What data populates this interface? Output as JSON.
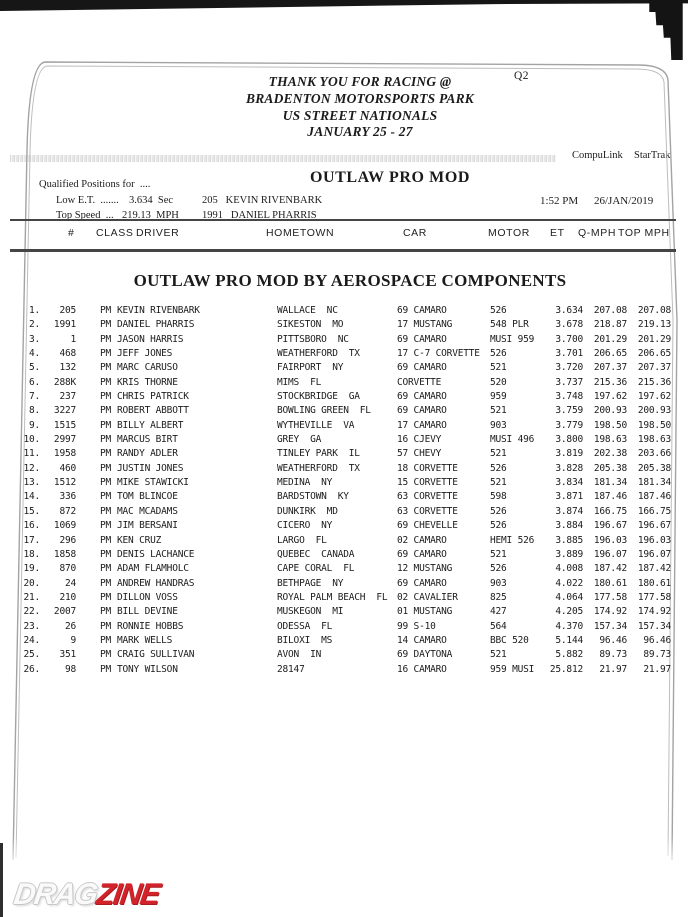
{
  "page": {
    "session_label": "Q2",
    "header_lines": [
      "THANK YOU FOR RACING @",
      "BRADENTON MOTORSPORTS PARK",
      "US STREET NATIONALS",
      "JANUARY 25 - 27"
    ],
    "brand": "CompuLink  StarTrak",
    "qualified_label": "Qualified Positions for  ....",
    "low_et_label": "Low E.T.  .......",
    "low_et_value": "3.634  Sec",
    "low_et_holder": "205   KEVIN RIVENBARK",
    "top_speed_label": "Top Speed  ...",
    "top_speed_value": "219.13  MPH",
    "top_speed_holder": "1991   DANIEL PHARRIS",
    "class_title": "OUTLAW PRO MOD",
    "print_time": "1:52 PM",
    "print_date": "26/JAN/2019",
    "section_title": "OUTLAW PRO MOD BY AEROSPACE COMPONENTS",
    "logo": {
      "part1": "DRAG",
      "part2": "ZINE",
      "accent_color": "#d2232a"
    }
  },
  "table": {
    "headers": [
      "#",
      "CLASS",
      "DRIVER",
      "HOMETOWN",
      "CAR",
      "MOTOR",
      "ET",
      "Q-MPH",
      "TOP MPH"
    ],
    "rows": [
      {
        "pos": "1.",
        "num": "205",
        "cls": "PM",
        "driver": "KEVIN RIVENBARK",
        "hometown": "WALLACE  NC",
        "car": "69 CAMARO",
        "motor": "526",
        "et": "3.634",
        "qmph": "207.08",
        "top": "207.08"
      },
      {
        "pos": "2.",
        "num": "1991",
        "cls": "PM",
        "driver": "DANIEL PHARRIS",
        "hometown": "SIKESTON  MO",
        "car": "17 MUSTANG",
        "motor": "548 PLR",
        "et": "3.678",
        "qmph": "218.87",
        "top": "219.13"
      },
      {
        "pos": "3.",
        "num": "1",
        "cls": "PM",
        "driver": "JASON HARRIS",
        "hometown": "PITTSBORO  NC",
        "car": "69 CAMARO",
        "motor": "MUSI 959",
        "et": "3.700",
        "qmph": "201.29",
        "top": "201.29"
      },
      {
        "pos": "4.",
        "num": "468",
        "cls": "PM",
        "driver": "JEFF JONES",
        "hometown": "WEATHERFORD  TX",
        "car": "17 C-7 CORVETTE",
        "motor": "526",
        "et": "3.701",
        "qmph": "206.65",
        "top": "206.65"
      },
      {
        "pos": "5.",
        "num": "132",
        "cls": "PM",
        "driver": "MARC CARUSO",
        "hometown": "FAIRPORT  NY",
        "car": "69 CAMARO",
        "motor": "521",
        "et": "3.720",
        "qmph": "207.37",
        "top": "207.37"
      },
      {
        "pos": "6.",
        "num": "288K",
        "cls": "PM",
        "driver": "KRIS THORNE",
        "hometown": "MIMS  FL",
        "car": "CORVETTE",
        "motor": "520",
        "et": "3.737",
        "qmph": "215.36",
        "top": "215.36"
      },
      {
        "pos": "7.",
        "num": "237",
        "cls": "PM",
        "driver": "CHRIS PATRICK",
        "hometown": "STOCKBRIDGE  GA",
        "car": "69 CAMARO",
        "motor": "959",
        "et": "3.748",
        "qmph": "197.62",
        "top": "197.62"
      },
      {
        "pos": "8.",
        "num": "3227",
        "cls": "PM",
        "driver": "ROBERT ABBOTT",
        "hometown": "BOWLING GREEN  FL",
        "car": "69 CAMARO",
        "motor": "521",
        "et": "3.759",
        "qmph": "200.93",
        "top": "200.93"
      },
      {
        "pos": "9.",
        "num": "1515",
        "cls": "PM",
        "driver": "BILLY ALBERT",
        "hometown": "WYTHEVILLE  VA",
        "car": "17 CAMARO",
        "motor": "903",
        "et": "3.779",
        "qmph": "198.50",
        "top": "198.50"
      },
      {
        "pos": "10.",
        "num": "2997",
        "cls": "PM",
        "driver": "MARCUS BIRT",
        "hometown": "GREY  GA",
        "car": "16 CJEVY",
        "motor": "MUSI 496",
        "et": "3.800",
        "qmph": "198.63",
        "top": "198.63"
      },
      {
        "pos": "11.",
        "num": "1958",
        "cls": "PM",
        "driver": "RANDY ADLER",
        "hometown": "TINLEY PARK  IL",
        "car": "57 CHEVY",
        "motor": "521",
        "et": "3.819",
        "qmph": "202.38",
        "top": "203.66"
      },
      {
        "pos": "12.",
        "num": "460",
        "cls": "PM",
        "driver": "JUSTIN JONES",
        "hometown": "WEATHERFORD  TX",
        "car": "18 CORVETTE",
        "motor": "526",
        "et": "3.828",
        "qmph": "205.38",
        "top": "205.38"
      },
      {
        "pos": "13.",
        "num": "1512",
        "cls": "PM",
        "driver": "MIKE STAWICKI",
        "hometown": "MEDINA  NY",
        "car": "15 CORVETTE",
        "motor": "521",
        "et": "3.834",
        "qmph": "181.34",
        "top": "181.34"
      },
      {
        "pos": "14.",
        "num": "336",
        "cls": "PM",
        "driver": "TOM BLINCOE",
        "hometown": "BARDSTOWN  KY",
        "car": "63 CORVETTE",
        "motor": "598",
        "et": "3.871",
        "qmph": "187.46",
        "top": "187.46"
      },
      {
        "pos": "15.",
        "num": "872",
        "cls": "PM",
        "driver": "MAC MCADAMS",
        "hometown": "DUNKIRK  MD",
        "car": "63 CORVETTE",
        "motor": "526",
        "et": "3.874",
        "qmph": "166.75",
        "top": "166.75"
      },
      {
        "pos": "16.",
        "num": "1069",
        "cls": "PM",
        "driver": "JIM BERSANI",
        "hometown": "CICERO  NY",
        "car": "69 CHEVELLE",
        "motor": "526",
        "et": "3.884",
        "qmph": "196.67",
        "top": "196.67"
      },
      {
        "pos": "17.",
        "num": "296",
        "cls": "PM",
        "driver": "KEN CRUZ",
        "hometown": "LARGO  FL",
        "car": "02 CAMARO",
        "motor": "HEMI 526",
        "et": "3.885",
        "qmph": "196.03",
        "top": "196.03"
      },
      {
        "pos": "18.",
        "num": "1858",
        "cls": "PM",
        "driver": "DENIS LACHANCE",
        "hometown": "QUEBEC  CANADA",
        "car": "69 CAMARO",
        "motor": "521",
        "et": "3.889",
        "qmph": "196.07",
        "top": "196.07"
      },
      {
        "pos": "19.",
        "num": "870",
        "cls": "PM",
        "driver": "ADAM FLAMHOLC",
        "hometown": "CAPE CORAL  FL",
        "car": "12 MUSTANG",
        "motor": "526",
        "et": "4.008",
        "qmph": "187.42",
        "top": "187.42"
      },
      {
        "pos": "20.",
        "num": "24",
        "cls": "PM",
        "driver": "ANDREW HANDRAS",
        "hometown": "BETHPAGE  NY",
        "car": "69 CAMARO",
        "motor": "903",
        "et": "4.022",
        "qmph": "180.61",
        "top": "180.61"
      },
      {
        "pos": "21.",
        "num": "210",
        "cls": "PM",
        "driver": "DILLON VOSS",
        "hometown": "ROYAL PALM BEACH  FL",
        "car": "02 CAVALIER",
        "motor": "825",
        "et": "4.064",
        "qmph": "177.58",
        "top": "177.58"
      },
      {
        "pos": "22.",
        "num": "2007",
        "cls": "PM",
        "driver": "BILL DEVINE",
        "hometown": "MUSKEGON  MI",
        "car": "01 MUSTANG",
        "motor": "427",
        "et": "4.205",
        "qmph": "174.92",
        "top": "174.92"
      },
      {
        "pos": "23.",
        "num": "26",
        "cls": "PM",
        "driver": "RONNIE HOBBS",
        "hometown": "ODESSA  FL",
        "car": "99 S-10",
        "motor": "564",
        "et": "4.370",
        "qmph": "157.34",
        "top": "157.34"
      },
      {
        "pos": "24.",
        "num": "9",
        "cls": "PM",
        "driver": "MARK WELLS",
        "hometown": "BILOXI  MS",
        "car": "14 CAMARO",
        "motor": "BBC 520",
        "et": "5.144",
        "qmph": "96.46",
        "top": "96.46"
      },
      {
        "pos": "25.",
        "num": "351",
        "cls": "PM",
        "driver": "CRAIG SULLIVAN",
        "hometown": "AVON  IN",
        "car": "69 DAYTONA",
        "motor": "521",
        "et": "5.882",
        "qmph": "89.73",
        "top": "89.73"
      },
      {
        "pos": "26.",
        "num": "98",
        "cls": "PM",
        "driver": "TONY WILSON",
        "hometown": "28147",
        "car": "16 CAMARO",
        "motor": "959 MUSI",
        "et": "25.812",
        "qmph": "21.97",
        "top": "21.97"
      }
    ]
  }
}
